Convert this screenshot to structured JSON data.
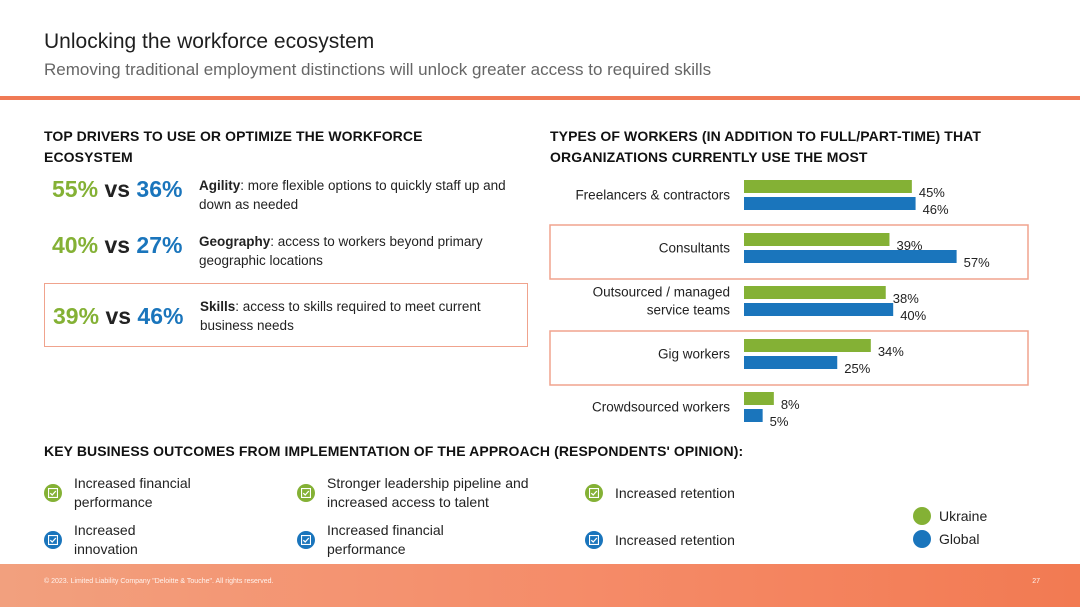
{
  "header": {
    "title": "Unlocking the workforce ecosystem",
    "subtitle": "Removing traditional employment distinctions will unlock greater access to required skills"
  },
  "drivers": {
    "heading": "TOP DRIVERS TO USE OR OPTIMIZE THE WORKFORCE ECOSYSTEM",
    "vs_label": "vs",
    "items": [
      {
        "ukraine": "55%",
        "global": "36%",
        "term": "Agility",
        "text": ": more flexible options to quickly staff up and down as needed",
        "highlighted": false
      },
      {
        "ukraine": "40%",
        "global": "27%",
        "term": "Geography",
        "text": ": access to workers beyond primary geographic locations",
        "highlighted": false
      },
      {
        "ukraine": "39%",
        "global": "46%",
        "term": "Skills",
        "text": ": access to skills required to meet current business needs",
        "highlighted": true
      }
    ]
  },
  "workers": {
    "heading": "TYPES OF WORKERS (IN ADDITION TO FULL/PART-TIME) THAT ORGANIZATIONS CURRENTLY USE THE MOST"
  },
  "chart_data": {
    "type": "bar",
    "orientation": "horizontal",
    "categories": [
      [
        "Freelancers & contractors"
      ],
      [
        "Consultants"
      ],
      [
        "Outsourced / managed",
        "service teams"
      ],
      [
        "Gig workers"
      ],
      [
        "Crowdsourced workers"
      ]
    ],
    "series": [
      {
        "name": "Ukraine",
        "values": [
          45,
          39,
          38,
          34,
          8
        ],
        "labels": [
          "45%",
          "39%",
          "38%",
          "34%",
          "8%"
        ],
        "color": "#84b135"
      },
      {
        "name": "Global",
        "values": [
          46,
          57,
          40,
          25,
          5
        ],
        "labels": [
          "46%",
          "57%",
          "40%",
          "25%",
          "5%"
        ],
        "color": "#1a75bc"
      }
    ],
    "highlighted_categories": [
      1,
      3
    ],
    "xlim": [
      0,
      60
    ],
    "grid": false
  },
  "outcomes": {
    "heading": "KEY BUSINESS OUTCOMES FROM IMPLEMENTATION OF THE APPROACH (RESPONDENTS' OPINION):",
    "ukraine": [
      "Increased financial\nperformance",
      "Stronger leadership pipeline and\nincreased access to talent",
      "Increased retention"
    ],
    "global": [
      "Increased\ninnovation",
      "Increased financial\nperformance",
      "Increased retention"
    ],
    "icon": "checklist-icon"
  },
  "legend": {
    "ukraine": "Ukraine",
    "global": "Global"
  },
  "colors": {
    "ukraine": "#84b135",
    "global": "#1a75bc",
    "accent": "#f07a55",
    "highlight_border": "#f0a38d"
  },
  "footer": {
    "copyright": "© 2023. Limited Liability Company \"Deloitte & Touche\". All rights reserved.",
    "page": "27"
  }
}
